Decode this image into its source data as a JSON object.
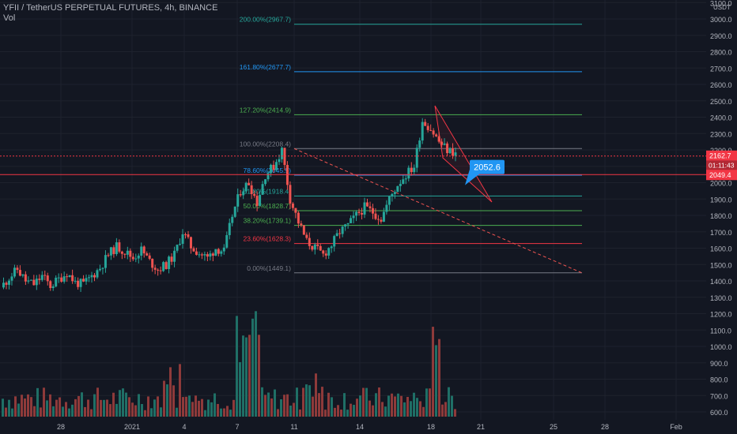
{
  "header": {
    "title": "YFII / TetherUS PERPETUAL FUTURES, 4h, BINANCE",
    "volume_label": "Vol"
  },
  "price_axis": {
    "currency": "USDT",
    "ticks": [
      "3100.0",
      "3000.0",
      "2900.0",
      "2800.0",
      "2700.0",
      "2600.0",
      "2500.0",
      "2400.0",
      "2300.0",
      "2200.0",
      "2100.0",
      "2000.0",
      "1900.0",
      "1800.0",
      "1700.0",
      "1600.0",
      "1500.0",
      "1400.0",
      "1300.0",
      "1200.0",
      "1100.0",
      "1000.0",
      "900.0",
      "800.0",
      "700.0",
      "600.0"
    ],
    "last_price_label": "2162.7",
    "countdown_label": "01:11:43",
    "line_price_label": "2049.4"
  },
  "time_axis": {
    "labels": [
      "28",
      "2021",
      "4",
      "7",
      "11",
      "14",
      "18",
      "21",
      "25",
      "28",
      "Feb"
    ]
  },
  "fib": {
    "levels": [
      {
        "label": "200.00%(2967.7)",
        "color": "#26a69a"
      },
      {
        "label": "161.80%(2677.7)",
        "color": "#2196f3"
      },
      {
        "label": "127.20%(2414.9)",
        "color": "#4caf50"
      },
      {
        "label": "100.00%(2208.4)",
        "color": "#787b86"
      },
      {
        "label": "78.60%(2045.9)",
        "color": "#2196f3"
      },
      {
        "label": "61.80%(1918.4)",
        "color": "#26a69a"
      },
      {
        "label": "50.00%(1828.7)",
        "color": "#4caf50"
      },
      {
        "label": "38.20%(1739.1)",
        "color": "#4caf50"
      },
      {
        "label": "23.60%(1628.3)",
        "color": "#f23645"
      },
      {
        "label": "0.00%(1449.1)",
        "color": "#787b86"
      }
    ]
  },
  "callout": {
    "text": "2052.6"
  },
  "colors": {
    "up": "#26a69a",
    "down": "#ef5350",
    "background": "#131722",
    "text": "#b2b5be",
    "grid": "#1e222d",
    "callout": "#2196f3",
    "marker_red": "#f23645"
  },
  "chart_data": {
    "type": "candlestick",
    "symbol": "YFII / TetherUS PERPETUAL FUTURES",
    "interval": "4h",
    "exchange": "BINANCE",
    "price_range": [
      600,
      3100
    ],
    "last_price": 2162.7,
    "fib_levels": [
      2967.7,
      2677.7,
      2414.9,
      2208.4,
      2045.9,
      1918.4,
      1828.7,
      1739.1,
      1628.3,
      1449.1
    ],
    "horizontal_line": 2049.4,
    "callout_price": 2052.6,
    "price_path": [
      1360,
      1420,
      1470,
      1400,
      1380,
      1430,
      1370,
      1410,
      1450,
      1390,
      1380,
      1430,
      1480,
      1560,
      1610,
      1580,
      1540,
      1590,
      1520,
      1470,
      1500,
      1560,
      1700,
      1610,
      1570,
      1540,
      1600,
      1580,
      1800,
      1950,
      2000,
      1880,
      2050,
      2100,
      2200,
      1900,
      1760,
      1640,
      1600,
      1560,
      1620,
      1700,
      1740,
      1800,
      1850,
      1820,
      1780,
      1900,
      1990,
      2050,
      2100,
      2380,
      2330,
      2250,
      2200,
      2180
    ]
  }
}
